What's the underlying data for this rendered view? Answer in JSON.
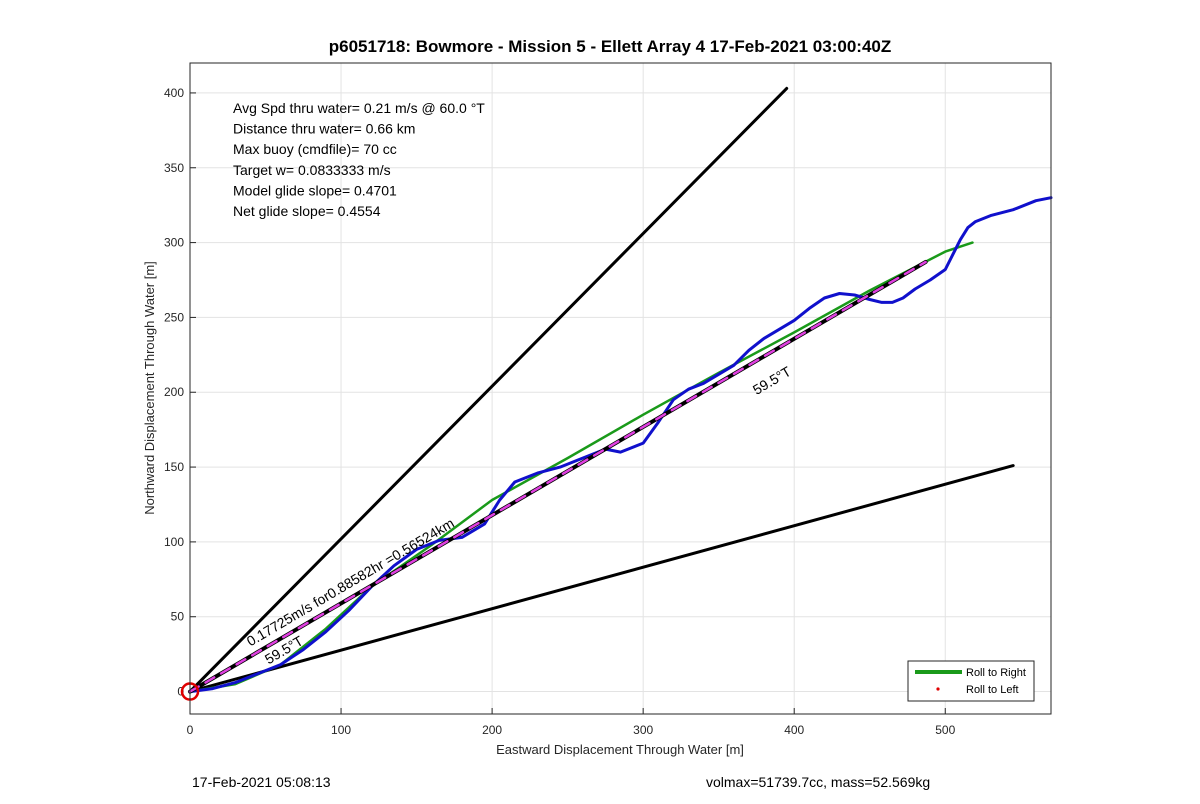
{
  "chart_data": {
    "type": "line",
    "title": "p6051718: Bowmore - Mission 5 - Ellett Array 4 17-Feb-2021 03:00:40Z",
    "xlabel": "Eastward Displacement Through Water [m]",
    "ylabel": "Northward Displacement Through Water [m]",
    "xlim": [
      0,
      570
    ],
    "ylim": [
      -15,
      420
    ],
    "xticks": [
      0,
      100,
      200,
      300,
      400,
      500
    ],
    "yticks": [
      0,
      50,
      100,
      150,
      200,
      250,
      300,
      350,
      400
    ],
    "grid": true,
    "legend_position": "bottom-right",
    "info_lines": [
      "Avg Spd thru water=  0.21 m/s @  60.0 °T",
      "Distance thru water=  0.66 km",
      "Max buoy (cmdfile)= 70 cc",
      "Target w= 0.0833333 m/s",
      "Model glide slope= 0.4701",
      "Net glide slope= 0.4554"
    ],
    "annotations": [
      {
        "text": "0.17725m/s for0.88582hr =0.56524km",
        "x": 40,
        "y": 30,
        "angle_deg": 59.5
      },
      {
        "text": "59.5°T",
        "x": 52,
        "y": 18,
        "angle_deg": 59.5
      },
      {
        "text": "59.5°T",
        "x": 375,
        "y": 198,
        "angle_deg": 59.5
      }
    ],
    "series": [
      {
        "name": "Roll to Right",
        "role": "roll-right",
        "color": "#1a9a1a",
        "x": [
          0,
          30,
          60,
          90,
          120,
          160,
          200,
          250,
          300,
          350,
          400,
          450,
          500,
          518
        ],
        "y": [
          0,
          5,
          18,
          42,
          70,
          98,
          128,
          156,
          185,
          213,
          240,
          268,
          294,
          300
        ]
      },
      {
        "name": "Roll to Left",
        "role": "roll-left",
        "color": "#e00000",
        "x": [],
        "y": []
      },
      {
        "role": "track",
        "color": "#1010cc",
        "x": [
          0,
          15,
          30,
          45,
          60,
          75,
          90,
          105,
          120,
          135,
          150,
          165,
          180,
          195,
          205,
          215,
          230,
          245,
          260,
          275,
          285,
          300,
          310,
          320,
          330,
          340,
          350,
          360,
          370,
          380,
          390,
          400,
          410,
          420,
          430,
          440,
          450,
          458,
          465,
          472,
          480,
          490,
          500,
          505,
          510,
          515,
          520,
          530,
          545,
          560,
          570
        ],
        "y": [
          0,
          2,
          6,
          12,
          18,
          28,
          40,
          54,
          70,
          84,
          95,
          101,
          103,
          112,
          128,
          140,
          146,
          150,
          156,
          162,
          160,
          166,
          180,
          195,
          202,
          206,
          212,
          218,
          228,
          236,
          242,
          248,
          256,
          263,
          266,
          265,
          262,
          260,
          260,
          263,
          269,
          275,
          282,
          292,
          302,
          310,
          314,
          318,
          322,
          328,
          330
        ]
      },
      {
        "role": "mean-track",
        "color": "#000000",
        "x": [
          0,
          487
        ],
        "y": [
          0,
          287
        ]
      },
      {
        "role": "mean-track-overlay",
        "color": "#e040e0",
        "x": [
          0,
          487
        ],
        "y": [
          0,
          287
        ]
      },
      {
        "role": "boundary",
        "color": "#000000",
        "x": [
          0,
          395
        ],
        "y": [
          0,
          403
        ]
      },
      {
        "role": "boundary",
        "color": "#000000",
        "x": [
          0,
          545
        ],
        "y": [
          0,
          151
        ]
      }
    ],
    "start_marker": {
      "x": 0,
      "y": 0,
      "color": "#e00000"
    }
  },
  "footer": {
    "left": "17-Feb-2021 05:08:13",
    "right": "volmax=51739.7cc, mass=52.569kg"
  }
}
